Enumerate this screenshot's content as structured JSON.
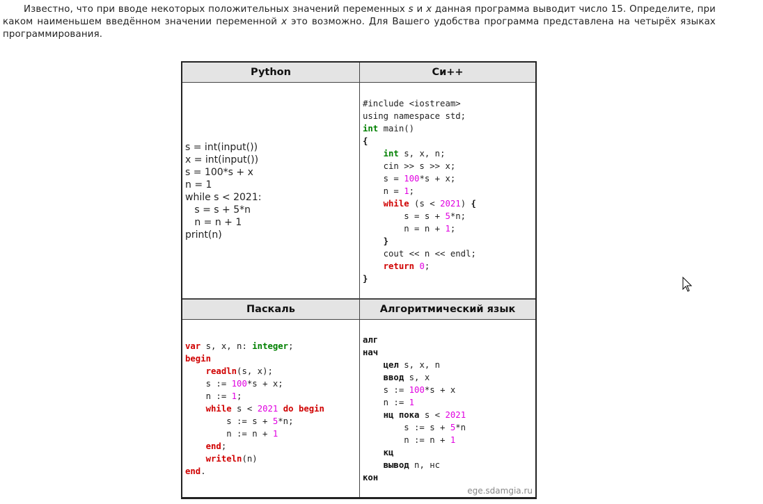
{
  "intro": {
    "p1": "Известно, что при вводе некоторых положительных значений переменных ",
    "var_s": "s",
    "p2": " и ",
    "var_x": "x",
    "p3": " данная программа выводит число 15. Определите, при каком наименьшем введённом значении переменной ",
    "var_x2": "x",
    "p4": " это возможно. Для Вашего удобства программа представлена на четырёх языках программирования."
  },
  "table": {
    "headers": [
      "Python",
      "Си++",
      "Паскаль",
      "Алгоритмический язык"
    ],
    "watermark": "ege.sdamgia.ru",
    "python": [
      [
        [
          "s = int(input())",
          ""
        ]
      ],
      [
        [
          "x = int(input())",
          ""
        ]
      ],
      [
        [
          "s = 100*s + x",
          ""
        ]
      ],
      [
        [
          "n = 1",
          ""
        ]
      ],
      [
        [
          "while s < 2021:",
          ""
        ]
      ],
      [
        [
          "   s = s + 5*n",
          ""
        ]
      ],
      [
        [
          "   n = n + 1",
          ""
        ]
      ],
      [
        [
          "print(n)",
          ""
        ]
      ]
    ],
    "cpp": [
      [
        [
          "#include <iostream>",
          ""
        ]
      ],
      [
        [
          "using namespace std;",
          ""
        ]
      ],
      [
        [
          "int",
          "ty"
        ],
        [
          " main()",
          ""
        ]
      ],
      [
        [
          "{",
          "b"
        ]
      ],
      [
        [
          "    ",
          ""
        ],
        [
          "int",
          "ty"
        ],
        [
          " s, x, n;",
          ""
        ]
      ],
      [
        [
          "    cin >> s >> x;",
          ""
        ]
      ],
      [
        [
          "    s = ",
          ""
        ],
        [
          "100",
          "num"
        ],
        [
          "*s + x;",
          ""
        ]
      ],
      [
        [
          "    n = ",
          ""
        ],
        [
          "1",
          "num"
        ],
        [
          ";",
          ""
        ]
      ],
      [
        [
          "    ",
          ""
        ],
        [
          "while",
          "kw"
        ],
        [
          " (s < ",
          ""
        ],
        [
          "2021",
          "num"
        ],
        [
          ") ",
          ""
        ],
        [
          "{",
          "b"
        ]
      ],
      [
        [
          "        s = s + ",
          ""
        ],
        [
          "5",
          "num"
        ],
        [
          "*n;",
          ""
        ]
      ],
      [
        [
          "        n = n + ",
          ""
        ],
        [
          "1",
          "num"
        ],
        [
          ";",
          ""
        ]
      ],
      [
        [
          "    ",
          ""
        ],
        [
          "}",
          "b"
        ]
      ],
      [
        [
          "    cout << n << endl;",
          ""
        ]
      ],
      [
        [
          "    ",
          ""
        ],
        [
          "return",
          "kw"
        ],
        [
          " ",
          ""
        ],
        [
          "0",
          "num"
        ],
        [
          ";",
          ""
        ]
      ],
      [
        [
          "}",
          "b"
        ]
      ]
    ],
    "pascal": [
      [
        [
          "var",
          "kw"
        ],
        [
          " s, x, n: ",
          ""
        ],
        [
          "integer",
          "ty"
        ],
        [
          ";",
          ""
        ]
      ],
      [
        [
          "begin",
          "kw"
        ]
      ],
      [
        [
          "    ",
          ""
        ],
        [
          "readln",
          "kw"
        ],
        [
          "(s, x);",
          ""
        ]
      ],
      [
        [
          "    s := ",
          ""
        ],
        [
          "100",
          "num"
        ],
        [
          "*s + x;",
          ""
        ]
      ],
      [
        [
          "    n := ",
          ""
        ],
        [
          "1",
          "num"
        ],
        [
          ";",
          ""
        ]
      ],
      [
        [
          "    ",
          ""
        ],
        [
          "while",
          "kw"
        ],
        [
          " s < ",
          ""
        ],
        [
          "2021",
          "num"
        ],
        [
          " ",
          ""
        ],
        [
          "do",
          "kw"
        ],
        [
          " ",
          ""
        ],
        [
          "begin",
          "kw"
        ]
      ],
      [
        [
          "        s := s + ",
          ""
        ],
        [
          "5",
          "num"
        ],
        [
          "*n;",
          ""
        ]
      ],
      [
        [
          "        n := n + ",
          ""
        ],
        [
          "1",
          "num"
        ]
      ],
      [
        [
          "    ",
          ""
        ],
        [
          "end",
          "kw"
        ],
        [
          ";",
          ""
        ]
      ],
      [
        [
          "    ",
          ""
        ],
        [
          "writeln",
          "kw"
        ],
        [
          "(n)",
          ""
        ]
      ],
      [
        [
          "end",
          "kw"
        ],
        [
          ".",
          ""
        ]
      ]
    ],
    "algo": [
      [
        [
          "алг",
          "b"
        ]
      ],
      [
        [
          "нач",
          "b"
        ]
      ],
      [
        [
          "    ",
          ""
        ],
        [
          "цел",
          "b"
        ],
        [
          " s, x, n",
          ""
        ]
      ],
      [
        [
          "    ",
          ""
        ],
        [
          "ввод",
          "b"
        ],
        [
          " s, x",
          ""
        ]
      ],
      [
        [
          "    s := ",
          ""
        ],
        [
          "100",
          "num"
        ],
        [
          "*s + x",
          ""
        ]
      ],
      [
        [
          "    n := ",
          ""
        ],
        [
          "1",
          "num"
        ]
      ],
      [
        [
          "    ",
          ""
        ],
        [
          "нц пока",
          "b"
        ],
        [
          " s < ",
          ""
        ],
        [
          "2021",
          "num"
        ]
      ],
      [
        [
          "        s := s + ",
          ""
        ],
        [
          "5",
          "num"
        ],
        [
          "*n",
          ""
        ]
      ],
      [
        [
          "        n := n + ",
          ""
        ],
        [
          "1",
          "num"
        ]
      ],
      [
        [
          "    ",
          ""
        ],
        [
          "кц",
          "b"
        ]
      ],
      [
        [
          "    ",
          ""
        ],
        [
          "вывод",
          "b"
        ],
        [
          " n, нс",
          ""
        ]
      ],
      [
        [
          "кон",
          "b"
        ]
      ]
    ]
  }
}
